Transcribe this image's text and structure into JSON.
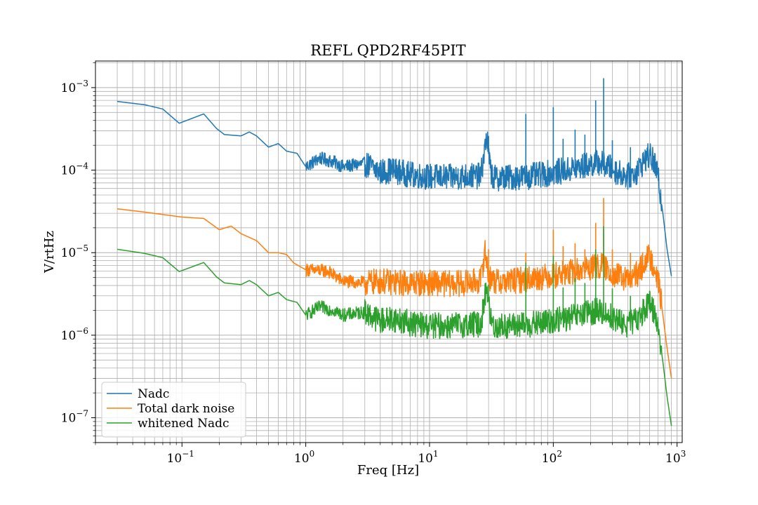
{
  "chart_data": {
    "type": "line",
    "title": "REFL QPD2RF45PIT",
    "xlabel": "Freq [Hz]",
    "ylabel": "V/rtHz",
    "x_scale": "log",
    "y_scale": "log",
    "xlim": [
      0.02,
      1100
    ],
    "ylim": [
      5e-08,
      0.0021
    ],
    "grid": true,
    "legend_position": "lower-left",
    "x_ticks": [
      {
        "base": "10",
        "exp": "−1",
        "value": 0.1
      },
      {
        "base": "10",
        "exp": "0",
        "value": 1
      },
      {
        "base": "10",
        "exp": "1",
        "value": 10
      },
      {
        "base": "10",
        "exp": "2",
        "value": 100
      },
      {
        "base": "10",
        "exp": "3",
        "value": 1000
      }
    ],
    "y_ticks": [
      {
        "base": "10",
        "exp": "−7",
        "value": 1e-07
      },
      {
        "base": "10",
        "exp": "−6",
        "value": 1e-06
      },
      {
        "base": "10",
        "exp": "−5",
        "value": 1e-05
      },
      {
        "base": "10",
        "exp": "−4",
        "value": 0.0001
      },
      {
        "base": "10",
        "exp": "−3",
        "value": 0.001
      }
    ],
    "series": [
      {
        "name": "Nadc",
        "color": "#1f77b4",
        "points": [
          [
            0.03,
            0.00068
          ],
          [
            0.05,
            0.00062
          ],
          [
            0.07,
            0.00055
          ],
          [
            0.095,
            0.00037
          ],
          [
            0.15,
            0.00048
          ],
          [
            0.19,
            0.00032
          ],
          [
            0.22,
            0.00027
          ],
          [
            0.3,
            0.00026
          ],
          [
            0.35,
            0.00029
          ],
          [
            0.4,
            0.00026
          ],
          [
            0.5,
            0.00019
          ],
          [
            0.6,
            0.00021
          ],
          [
            0.7,
            0.00017
          ],
          [
            0.85,
            0.00016
          ],
          [
            1,
            0.00011
          ],
          [
            1.3,
            0.00014
          ],
          [
            1.7,
            0.000125
          ],
          [
            2,
            0.00011
          ],
          [
            3,
            0.00012
          ],
          [
            4,
            9.5e-05
          ],
          [
            5,
            0.0001
          ],
          [
            7,
            8.8e-05
          ],
          [
            10,
            8.3e-05
          ],
          [
            15,
            8.2e-05
          ],
          [
            20,
            8.5e-05
          ],
          [
            26,
            8.5e-05
          ],
          [
            29,
            0.00026
          ],
          [
            31,
            0.0001
          ],
          [
            33,
            8e-05
          ],
          [
            45,
            8.2e-05
          ],
          [
            60,
            8.3e-05
          ],
          [
            80,
            8.8e-05
          ],
          [
            100,
            9.4e-05
          ],
          [
            130,
            0.0001
          ],
          [
            170,
            0.00011
          ],
          [
            230,
            0.000125
          ],
          [
            280,
            0.00011
          ],
          [
            330,
            9.4e-05
          ],
          [
            400,
            8.4e-05
          ],
          [
            470,
            9.5e-05
          ],
          [
            560,
            0.00014
          ],
          [
            600,
            0.00015
          ],
          [
            650,
            0.000125
          ],
          [
            700,
            8.5e-05
          ],
          [
            770,
            2.9e-05
          ],
          [
            830,
            1.1e-05
          ],
          [
            900,
            5.2e-06
          ]
        ],
        "spikes": [
          [
            30,
            0.00026
          ],
          [
            60,
            0.00048
          ],
          [
            100,
            0.00058
          ],
          [
            120,
            0.00024
          ],
          [
            150,
            0.00031
          ],
          [
            180,
            0.00027
          ],
          [
            220,
            0.0007
          ],
          [
            255,
            0.0013
          ],
          [
            300,
            0.00023
          ],
          [
            420,
            0.00019
          ]
        ]
      },
      {
        "name": "Total dark noise",
        "color": "#ff7f0e",
        "points": [
          [
            0.03,
            3.4e-05
          ],
          [
            0.05,
            3.1e-05
          ],
          [
            0.07,
            2.9e-05
          ],
          [
            0.1,
            2.7e-05
          ],
          [
            0.15,
            2.6e-05
          ],
          [
            0.2,
            1.9e-05
          ],
          [
            0.25,
            2.1e-05
          ],
          [
            0.3,
            1.7e-05
          ],
          [
            0.4,
            1.4e-05
          ],
          [
            0.5,
            1e-05
          ],
          [
            0.6,
            1e-05
          ],
          [
            0.7,
            9.5e-06
          ],
          [
            0.8,
            7.5e-06
          ],
          [
            1,
            6.2e-06
          ],
          [
            1.5,
            6e-06
          ],
          [
            2,
            4.5e-06
          ],
          [
            3,
            4.3e-06
          ],
          [
            4,
            4.5e-06
          ],
          [
            6,
            4.3e-06
          ],
          [
            10,
            4.3e-06
          ],
          [
            15,
            4.2e-06
          ],
          [
            20,
            4.3e-06
          ],
          [
            26,
            4.6e-06
          ],
          [
            28,
            1.1e-05
          ],
          [
            30,
            5e-06
          ],
          [
            35,
            4.4e-06
          ],
          [
            50,
            4.6e-06
          ],
          [
            70,
            4.9e-06
          ],
          [
            100,
            5.3e-06
          ],
          [
            140,
            5.8e-06
          ],
          [
            200,
            6.6e-06
          ],
          [
            250,
            6.9e-06
          ],
          [
            300,
            5.6e-06
          ],
          [
            350,
            5e-06
          ],
          [
            420,
            4.6e-06
          ],
          [
            500,
            6e-06
          ],
          [
            560,
            8.5e-06
          ],
          [
            600,
            8.8e-06
          ],
          [
            650,
            7.3e-06
          ],
          [
            700,
            4.9e-06
          ],
          [
            760,
            2e-06
          ],
          [
            820,
            8e-07
          ],
          [
            900,
            3e-07
          ]
        ],
        "spikes": [
          [
            30,
            1.1e-05
          ],
          [
            60,
            1e-05
          ],
          [
            100,
            1.9e-05
          ],
          [
            120,
            1.2e-05
          ],
          [
            150,
            1.3e-05
          ],
          [
            180,
            1.1e-05
          ],
          [
            220,
            2.3e-05
          ],
          [
            255,
            4.6e-05
          ],
          [
            300,
            1.1e-05
          ],
          [
            420,
            1e-05
          ]
        ]
      },
      {
        "name": "whitened Nadc",
        "color": "#2ca02c",
        "points": [
          [
            0.03,
            1.1e-05
          ],
          [
            0.05,
            9.8e-06
          ],
          [
            0.07,
            8.7e-06
          ],
          [
            0.095,
            5.9e-06
          ],
          [
            0.15,
            7.6e-06
          ],
          [
            0.19,
            5.1e-06
          ],
          [
            0.22,
            4.3e-06
          ],
          [
            0.3,
            4.1e-06
          ],
          [
            0.35,
            4.6e-06
          ],
          [
            0.4,
            4.1e-06
          ],
          [
            0.5,
            3e-06
          ],
          [
            0.6,
            3.3e-06
          ],
          [
            0.7,
            2.7e-06
          ],
          [
            0.85,
            2.5e-06
          ],
          [
            1,
            1.75e-06
          ],
          [
            1.3,
            2.2e-06
          ],
          [
            1.7,
            2e-06
          ],
          [
            2,
            1.75e-06
          ],
          [
            3,
            1.9e-06
          ],
          [
            4,
            1.5e-06
          ],
          [
            5,
            1.6e-06
          ],
          [
            7,
            1.4e-06
          ],
          [
            10,
            1.3e-06
          ],
          [
            15,
            1.3e-06
          ],
          [
            20,
            1.35e-06
          ],
          [
            26,
            1.35e-06
          ],
          [
            29,
            4.1e-06
          ],
          [
            31,
            1.6e-06
          ],
          [
            33,
            1.27e-06
          ],
          [
            45,
            1.3e-06
          ],
          [
            60,
            1.32e-06
          ],
          [
            80,
            1.4e-06
          ],
          [
            100,
            1.5e-06
          ],
          [
            130,
            1.6e-06
          ],
          [
            170,
            1.75e-06
          ],
          [
            230,
            2e-06
          ],
          [
            280,
            1.75e-06
          ],
          [
            330,
            1.5e-06
          ],
          [
            400,
            1.35e-06
          ],
          [
            470,
            1.5e-06
          ],
          [
            560,
            2.2e-06
          ],
          [
            600,
            2.4e-06
          ],
          [
            650,
            2e-06
          ],
          [
            700,
            1.35e-06
          ],
          [
            770,
            4.6e-07
          ],
          [
            830,
            1.8e-07
          ],
          [
            900,
            8e-08
          ]
        ],
        "spikes": [
          [
            30,
            4.1e-06
          ],
          [
            60,
            7.6e-06
          ],
          [
            100,
            9.2e-06
          ],
          [
            120,
            3.8e-06
          ],
          [
            150,
            4.9e-06
          ],
          [
            180,
            4.3e-06
          ],
          [
            220,
            1.1e-05
          ],
          [
            255,
            2.1e-05
          ],
          [
            300,
            3.7e-06
          ],
          [
            420,
            3e-06
          ]
        ]
      }
    ]
  }
}
